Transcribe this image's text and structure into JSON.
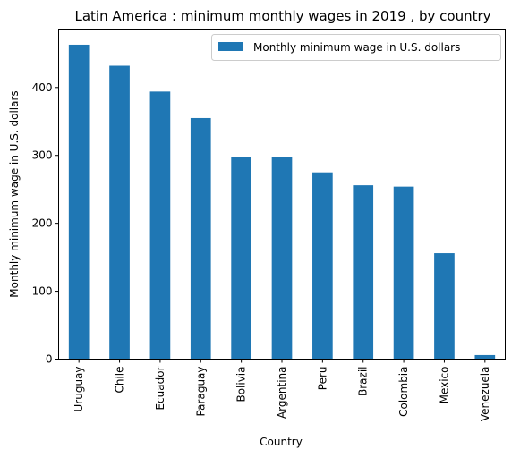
{
  "chart_data": {
    "type": "bar",
    "title": "Latin America : minimum monthly wages in 2019 , by country",
    "xlabel": "Country",
    "ylabel": "Monthly minimum wage in U.S. dollars",
    "categories": [
      "Uruguay",
      "Chile",
      "Ecuador",
      "Paraguay",
      "Bolivia",
      "Argentina",
      "Peru",
      "Brazil",
      "Colombia",
      "Mexico",
      "Venezuela"
    ],
    "series": [
      {
        "name": "Monthly minimum wage in U.S. dollars",
        "values": [
          463,
          432,
          394,
          355,
          297,
          297,
          275,
          256,
          254,
          156,
          6
        ],
        "color": "#1f77b4"
      }
    ],
    "yticks": [
      0,
      100,
      200,
      300,
      400
    ],
    "ylim": [
      0,
      486
    ],
    "grid": false,
    "legend_position": "top-right"
  }
}
